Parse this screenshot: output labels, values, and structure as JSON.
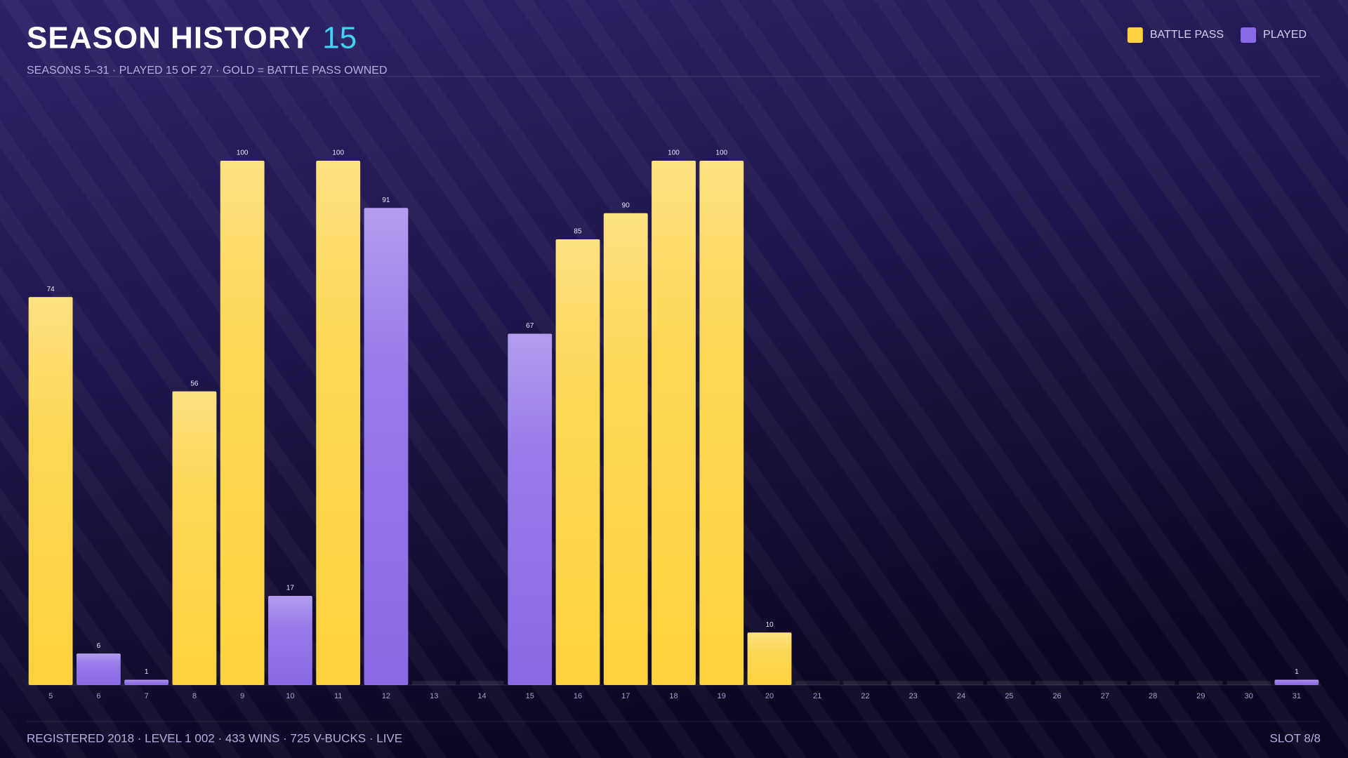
{
  "chart_data": {
    "type": "bar",
    "title": "SEASON HISTORY",
    "title_badge": 15,
    "subtitle": "SEASONS 5–31 · PLAYED 15 OF 27 · GOLD = BATTLE PASS OWNED",
    "categories": [
      "5",
      "6",
      "7",
      "8",
      "9",
      "10",
      "11",
      "12",
      "13",
      "14",
      "15",
      "16",
      "17",
      "18",
      "19",
      "20",
      "21",
      "22",
      "23",
      "24",
      "25",
      "26",
      "27",
      "28",
      "29",
      "30",
      "31"
    ],
    "series": [
      {
        "name": "BATTLE PASS",
        "color": "#fdd23e",
        "values": [
          74,
          null,
          null,
          56,
          100,
          null,
          100,
          null,
          null,
          null,
          null,
          85,
          90,
          100,
          100,
          10,
          null,
          null,
          null,
          null,
          null,
          null,
          null,
          null,
          null,
          null,
          null
        ]
      },
      {
        "name": "PLAYED",
        "color": "#8a68e6",
        "values": [
          null,
          6,
          1,
          null,
          null,
          17,
          null,
          91,
          null,
          null,
          67,
          null,
          null,
          null,
          null,
          null,
          null,
          null,
          null,
          null,
          null,
          null,
          null,
          null,
          null,
          null,
          1
        ]
      }
    ],
    "ylim": [
      0,
      100
    ],
    "legend": "top-right"
  },
  "footer": {
    "stats": "REGISTERED 2018 · LEVEL 1 002 · 433 WINS · 725 V-BUCKS · LIVE",
    "slot": "SLOT 8/8"
  }
}
